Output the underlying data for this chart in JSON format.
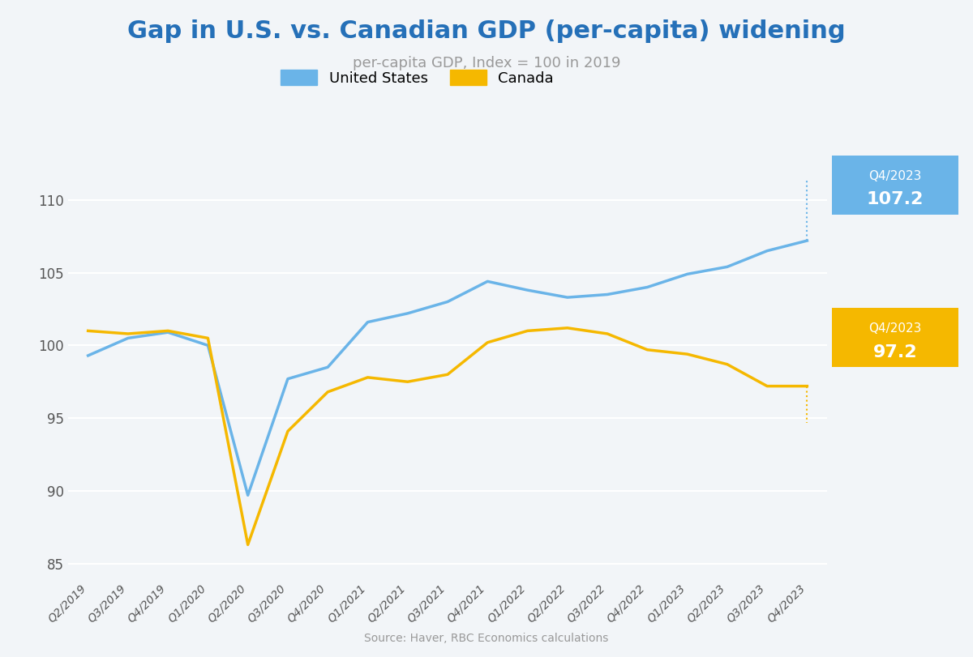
{
  "title": "Gap in U.S. vs. Canadian GDP (per-capita) widening",
  "subtitle": "per-capita GDP, Index = 100 in 2019",
  "source": "Source: Haver, RBC Economics calculations",
  "x_labels": [
    "Q2/2019",
    "Q3/2019",
    "Q4/2019",
    "Q1/2020",
    "Q2/2020",
    "Q3/2020",
    "Q4/2020",
    "Q1/2021",
    "Q2/2021",
    "Q3/2021",
    "Q4/2021",
    "Q1/2022",
    "Q2/2022",
    "Q3/2022",
    "Q4/2022",
    "Q1/2023",
    "Q2/2023",
    "Q3/2023",
    "Q4/2023"
  ],
  "us_values": [
    99.3,
    100.5,
    100.9,
    100.0,
    89.7,
    97.7,
    98.5,
    101.6,
    102.2,
    103.0,
    104.4,
    103.8,
    103.3,
    103.5,
    104.0,
    104.9,
    105.4,
    106.5,
    107.2
  ],
  "canada_values": [
    101.0,
    100.8,
    101.0,
    100.5,
    86.3,
    94.1,
    96.8,
    97.8,
    97.5,
    98.0,
    100.2,
    101.0,
    101.2,
    100.8,
    99.7,
    99.4,
    98.7,
    97.2,
    97.2
  ],
  "us_color": "#6ab4e8",
  "canada_color": "#f5b800",
  "us_label": "United States",
  "canada_label": "Canada",
  "us_annotation_label": "Q4/2023",
  "us_annotation_value": "107.2",
  "canada_annotation_label": "Q4/2023",
  "canada_annotation_value": "97.2",
  "us_box_color": "#6ab4e8",
  "canada_box_color": "#f5b800",
  "ylim": [
    84,
    112
  ],
  "yticks": [
    85,
    90,
    95,
    100,
    105,
    110
  ],
  "background_color": "#f2f5f8",
  "plot_bg_color": "#f2f5f8",
  "title_color": "#2570b8",
  "subtitle_color": "#999999",
  "source_color": "#999999",
  "title_fontsize": 22,
  "subtitle_fontsize": 13,
  "line_width": 2.5
}
